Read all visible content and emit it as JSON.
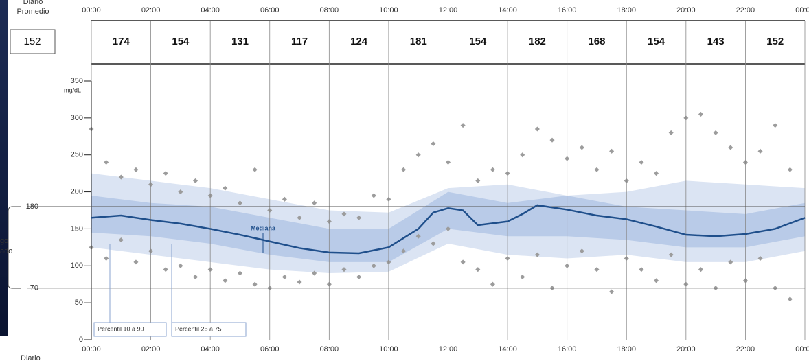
{
  "chart_data": {
    "type": "agp",
    "left_header": [
      "Diario",
      "Promedio"
    ],
    "daily_mean": 152,
    "bottom_cropped_label": "Diario",
    "range_label": [
      "go",
      "ado"
    ],
    "y_unit": "mg/dL",
    "xlim": [
      0,
      24
    ],
    "xticks": [
      {
        "value": 0,
        "label": "00:00"
      },
      {
        "value": 2,
        "label": "02:00"
      },
      {
        "value": 4,
        "label": "04:00"
      },
      {
        "value": 6,
        "label": "06:00"
      },
      {
        "value": 8,
        "label": "08:00"
      },
      {
        "value": 10,
        "label": "10:00"
      },
      {
        "value": 12,
        "label": "12:00"
      },
      {
        "value": 14,
        "label": "14:00"
      },
      {
        "value": 16,
        "label": "16:00"
      },
      {
        "value": 18,
        "label": "18:00"
      },
      {
        "value": 20,
        "label": "20:00"
      },
      {
        "value": 22,
        "label": "22:00"
      },
      {
        "value": 24,
        "label": "00:00"
      }
    ],
    "ylim": [
      0,
      350
    ],
    "yticks": [
      0,
      50,
      100,
      150,
      200,
      250,
      300,
      350
    ],
    "target_range": [
      70,
      180
    ],
    "period_means": [
      174,
      154,
      131,
      117,
      124,
      181,
      154,
      182,
      168,
      154,
      143,
      152
    ],
    "readings": {
      "color": "#9c9c9c",
      "x": [
        0,
        0.5,
        1,
        1.5,
        2,
        2.5,
        3,
        3.5,
        4,
        4.5,
        5,
        5.5,
        6,
        6.5,
        7,
        7.5,
        8,
        8.5,
        9,
        9.5,
        10,
        10.5,
        11,
        11.5,
        12,
        12.5,
        13,
        13.5,
        14,
        14.5,
        15,
        15.5,
        16,
        16.5,
        17,
        17.5,
        18,
        18.5,
        19,
        19.5,
        20,
        20.5,
        21,
        21.5,
        22,
        22.5,
        23,
        23.5,
        0,
        0.5,
        1,
        1.5,
        2,
        2.5,
        3,
        3.5,
        4,
        4.5,
        5,
        5.5,
        6,
        6.5,
        7,
        7.5,
        8,
        8.5,
        9,
        9.5,
        10,
        10.5,
        11,
        11.5,
        12,
        12.5,
        13,
        13.5,
        14,
        14.5,
        15,
        15.5,
        16,
        16.5,
        17,
        17.5,
        18,
        18.5,
        19,
        19.5,
        20,
        20.5,
        21,
        21.5,
        22,
        22.5,
        23,
        23.5
      ],
      "values": [
        285,
        240,
        220,
        230,
        210,
        225,
        200,
        215,
        195,
        205,
        185,
        230,
        175,
        190,
        165,
        185,
        160,
        170,
        165,
        195,
        190,
        230,
        250,
        265,
        240,
        290,
        215,
        230,
        225,
        250,
        285,
        270,
        245,
        260,
        230,
        255,
        215,
        240,
        225,
        280,
        300,
        305,
        280,
        260,
        240,
        255,
        290,
        230,
        125,
        110,
        135,
        105,
        120,
        95,
        100,
        85,
        95,
        80,
        90,
        75,
        70,
        85,
        78,
        90,
        75,
        95,
        85,
        100,
        105,
        120,
        140,
        130,
        150,
        105,
        95,
        75,
        110,
        85,
        115,
        70,
        100,
        120,
        95,
        65,
        110,
        95,
        80,
        115,
        75,
        95,
        70,
        105,
        80,
        110,
        70,
        55
      ]
    },
    "bands": [
      {
        "name": "Percentil 10 a 90",
        "color": "#dbe4f3",
        "x": [
          0,
          2,
          4,
          6,
          8,
          10,
          12,
          14,
          16,
          18,
          20,
          22,
          24
        ],
        "lower": [
          125,
          115,
          105,
          95,
          90,
          92,
          130,
          115,
          110,
          115,
          105,
          105,
          120
        ],
        "upper": [
          225,
          215,
          205,
          190,
          175,
          172,
          205,
          210,
          195,
          200,
          215,
          210,
          205
        ]
      },
      {
        "name": "Percentil 25 a 75",
        "color": "#b9cbe8",
        "x": [
          0,
          2,
          4,
          6,
          8,
          10,
          12,
          14,
          16,
          18,
          20,
          22,
          24
        ],
        "lower": [
          145,
          140,
          130,
          115,
          105,
          105,
          150,
          140,
          140,
          135,
          125,
          125,
          140
        ],
        "upper": [
          195,
          185,
          180,
          165,
          150,
          150,
          200,
          185,
          195,
          180,
          175,
          170,
          185
        ]
      }
    ],
    "series": [
      {
        "name": "Mediana",
        "color": "#1f4f8b",
        "x": [
          0,
          1,
          2,
          3,
          4,
          5,
          6,
          7,
          8,
          9,
          10,
          11,
          11.5,
          12,
          12.5,
          13,
          14,
          14.5,
          15,
          16,
          17,
          18,
          19,
          20,
          21,
          22,
          23,
          24
        ],
        "values": [
          165,
          168,
          162,
          157,
          150,
          142,
          133,
          124,
          118,
          117,
          125,
          150,
          172,
          178,
          175,
          155,
          160,
          170,
          182,
          176,
          168,
          163,
          153,
          142,
          140,
          143,
          150,
          165
        ]
      }
    ]
  }
}
